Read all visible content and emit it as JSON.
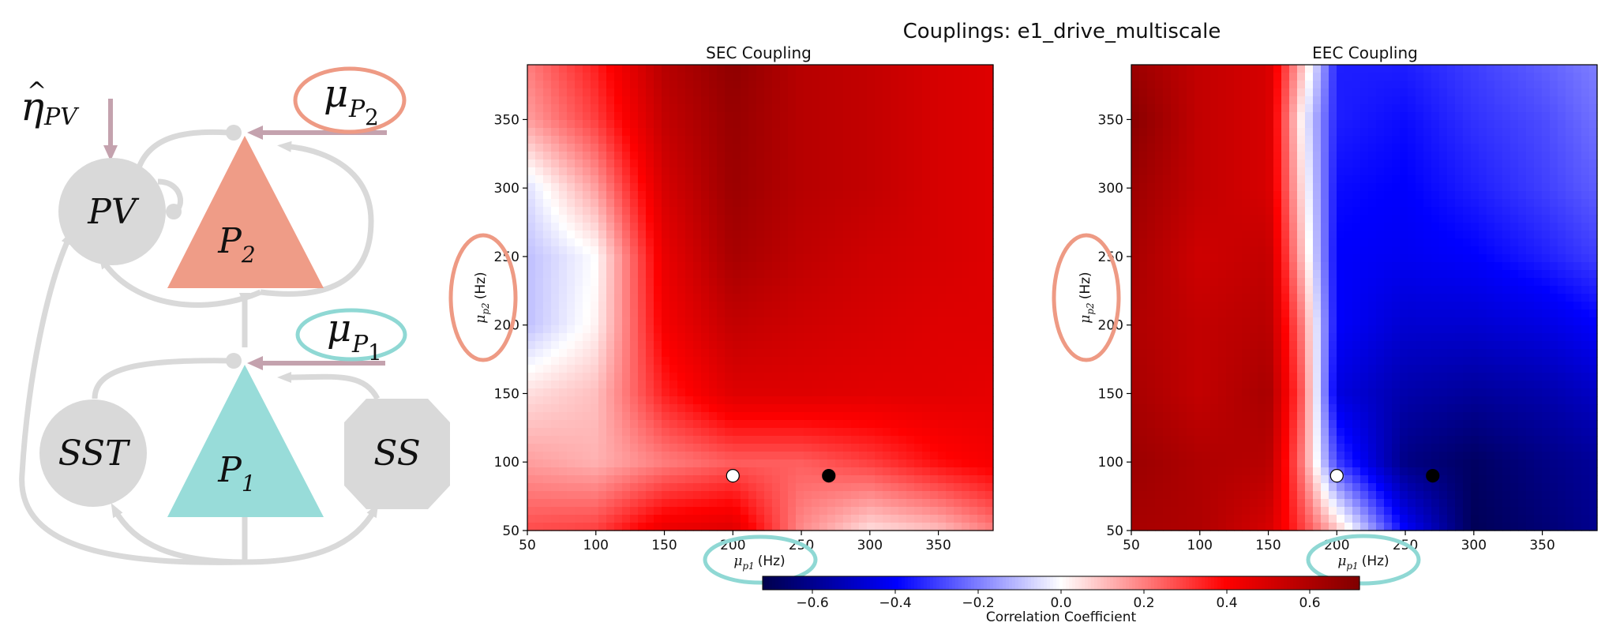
{
  "suptitle": "Couplings: e1_drive_multiscale",
  "diagram": {
    "eta": {
      "base": "η",
      "sub": "PV"
    },
    "mu_p2": {
      "base": "μ",
      "sub1": "P",
      "sub2": "2"
    },
    "mu_p1": {
      "base": "μ",
      "sub1": "P",
      "sub2": "1"
    },
    "nodes": {
      "pv": "PV",
      "p2": {
        "base": "P",
        "sub": "2"
      },
      "p1": {
        "base": "P",
        "sub": "1"
      },
      "sst": "SST",
      "ss": "SS"
    },
    "colors": {
      "p2": "#ef9c87",
      "p1": "#98dcd9",
      "grey": "#d9d9d9",
      "input_arrow": "#c4a2ae",
      "oval_red": "#ee9a84",
      "oval_teal": "#8fd8d4"
    }
  },
  "chart_data": [
    {
      "type": "heatmap",
      "title": "SEC Coupling",
      "xlabel": {
        "sym": "μ",
        "sub": "p1",
        "unit": "(Hz)"
      },
      "ylabel": {
        "sym": "μ",
        "sub": "p2",
        "unit": "(Hz)"
      },
      "xlim": [
        50,
        390
      ],
      "ylim": [
        50,
        390
      ],
      "xticks": [
        "50",
        "100",
        "150",
        "200",
        "250",
        "300",
        "350"
      ],
      "yticks": [
        "50",
        "100",
        "150",
        "200",
        "250",
        "300",
        "350"
      ],
      "x": [
        50,
        100,
        150,
        200,
        250,
        300,
        350,
        390
      ],
      "y": [
        390,
        350,
        300,
        250,
        200,
        150,
        100,
        50
      ],
      "z": [
        [
          0.2,
          0.35,
          0.58,
          0.68,
          0.58,
          0.55,
          0.5,
          0.48
        ],
        [
          0.15,
          0.3,
          0.55,
          0.66,
          0.58,
          0.55,
          0.5,
          0.48
        ],
        [
          -0.05,
          0.15,
          0.5,
          0.65,
          0.58,
          0.55,
          0.5,
          0.48
        ],
        [
          -0.1,
          0.0,
          0.45,
          0.62,
          0.56,
          0.52,
          0.5,
          0.48
        ],
        [
          -0.1,
          0.02,
          0.42,
          0.55,
          0.52,
          0.5,
          0.48,
          0.48
        ],
        [
          0.05,
          0.1,
          0.35,
          0.48,
          0.48,
          0.47,
          0.47,
          0.46
        ],
        [
          0.15,
          0.12,
          0.2,
          0.25,
          0.25,
          0.3,
          0.38,
          0.42
        ],
        [
          0.28,
          0.3,
          0.45,
          0.48,
          0.18,
          0.05,
          0.1,
          0.2
        ]
      ],
      "markers": [
        {
          "x": 200,
          "y": 90,
          "fill": "#ffffff"
        },
        {
          "x": 270,
          "y": 90,
          "fill": "#000000"
        }
      ]
    },
    {
      "type": "heatmap",
      "title": "EEC Coupling",
      "xlabel": {
        "sym": "μ",
        "sub": "p1",
        "unit": "(Hz)"
      },
      "ylabel": {
        "sym": "μ",
        "sub": "p2",
        "unit": "(Hz)"
      },
      "xlim": [
        50,
        390
      ],
      "ylim": [
        50,
        390
      ],
      "xticks": [
        "50",
        "100",
        "150",
        "200",
        "250",
        "300",
        "350"
      ],
      "yticks": [
        "50",
        "100",
        "150",
        "200",
        "250",
        "300",
        "350"
      ],
      "x": [
        50,
        100,
        150,
        175,
        200,
        250,
        300,
        350,
        390
      ],
      "y": [
        390,
        350,
        300,
        250,
        200,
        150,
        100,
        50
      ],
      "z": [
        [
          0.65,
          0.55,
          0.5,
          0.1,
          -0.35,
          -0.35,
          -0.3,
          -0.25,
          -0.2
        ],
        [
          0.7,
          0.55,
          0.5,
          0.0,
          -0.35,
          -0.38,
          -0.32,
          -0.28,
          -0.22
        ],
        [
          0.65,
          0.55,
          0.5,
          0.05,
          -0.38,
          -0.4,
          -0.35,
          -0.3,
          -0.25
        ],
        [
          0.62,
          0.52,
          0.55,
          0.1,
          -0.4,
          -0.42,
          -0.4,
          -0.35,
          -0.3
        ],
        [
          0.6,
          0.55,
          0.58,
          0.2,
          -0.4,
          -0.48,
          -0.48,
          -0.45,
          -0.4
        ],
        [
          0.62,
          0.55,
          0.62,
          0.25,
          -0.45,
          -0.55,
          -0.58,
          -0.55,
          -0.5
        ],
        [
          0.65,
          0.6,
          0.58,
          0.2,
          -0.3,
          -0.62,
          -0.68,
          -0.62,
          -0.58
        ],
        [
          0.62,
          0.6,
          0.5,
          0.3,
          0.1,
          -0.4,
          -0.7,
          -0.65,
          -0.6
        ]
      ],
      "markers": [
        {
          "x": 200,
          "y": 90,
          "fill": "#ffffff"
        },
        {
          "x": 270,
          "y": 90,
          "fill": "#000000"
        }
      ]
    }
  ],
  "colorbar": {
    "label": "Correlation Coefficient",
    "range": [
      -0.72,
      0.72
    ],
    "ticks": [
      "−0.6",
      "−0.4",
      "−0.2",
      "0.0",
      "0.2",
      "0.4",
      "0.6"
    ],
    "tick_values": [
      -0.6,
      -0.4,
      -0.2,
      0.0,
      0.2,
      0.4,
      0.6
    ],
    "cmap": [
      [
        "#00004c",
        -1
      ],
      [
        "#0000ff",
        -0.55
      ],
      [
        "#ffffff",
        0
      ],
      [
        "#ff0000",
        0.55
      ],
      [
        "#800000",
        1
      ]
    ]
  }
}
